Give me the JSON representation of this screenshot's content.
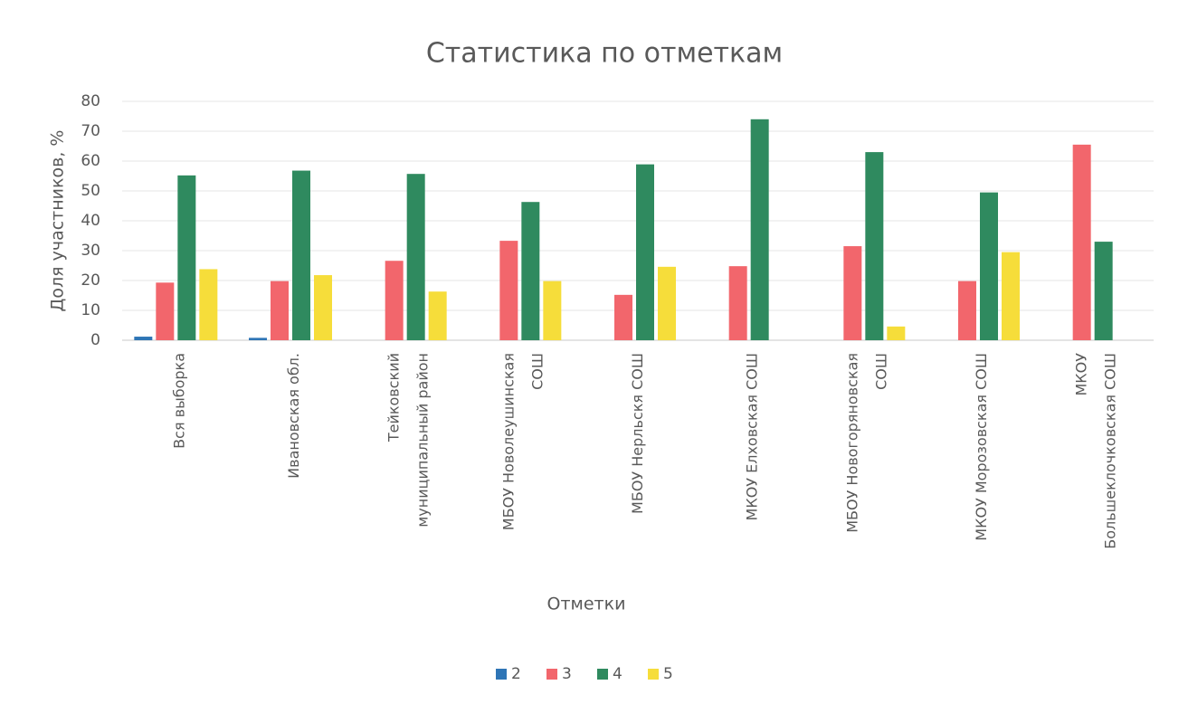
{
  "chart_data": {
    "type": "bar",
    "title": "Статистика по отметкам",
    "x_label": "Отметки",
    "y_label": "Доля участников, %",
    "categories": [
      "Вся выборка",
      "Ивановская обл.",
      "Тейковский муниципальный район",
      "МБОУ Новолеушинская СОШ",
      "МБОУ Нерльскя СОШ",
      "МКОУ Елховская СОШ",
      "МБОУ Новогоряновская СОШ",
      "МКОУ Морозовская СОШ",
      "МКОУ Большеклочковская СОШ"
    ],
    "series": [
      {
        "name": "2",
        "color": "#2e75b6",
        "values": [
          1.2,
          0.8,
          0,
          0,
          0,
          0,
          0,
          0,
          0
        ]
      },
      {
        "name": "3",
        "color": "#f2666c",
        "values": [
          19.3,
          19.8,
          26.6,
          33.3,
          15.2,
          24.8,
          31.5,
          19.8,
          65.5
        ]
      },
      {
        "name": "4",
        "color": "#2f8a5f",
        "values": [
          55.2,
          56.8,
          55.7,
          46.3,
          58.9,
          74,
          63,
          49.5,
          33
        ]
      },
      {
        "name": "5",
        "color": "#f6dd3a",
        "values": [
          23.8,
          21.8,
          16.3,
          19.8,
          24.6,
          0,
          4.6,
          29.5,
          0
        ]
      }
    ],
    "ylim": [
      0,
      80
    ],
    "yticks": [
      0,
      10,
      20,
      30,
      40,
      50,
      60,
      70,
      80
    ],
    "grid": true,
    "legend": "bottom"
  }
}
